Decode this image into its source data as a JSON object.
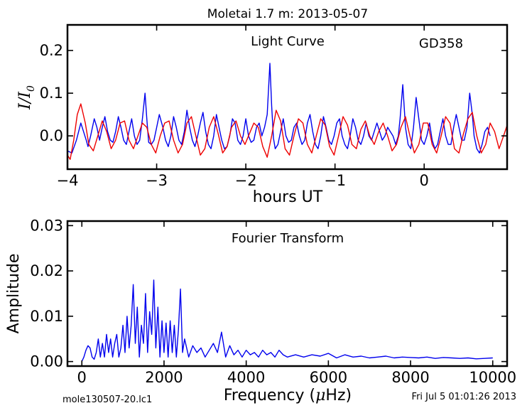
{
  "figure": {
    "title": "Moletai 1.7 m:  2013-05-07",
    "footer_left": "mole130507-20.lc1",
    "footer_right": "Fri Jul  5 01:01:26 2013"
  },
  "colors": {
    "data": "#0000ee",
    "model": "#ee0000",
    "axes": "#000000"
  },
  "chart_data": [
    {
      "type": "line",
      "panel": "top",
      "title": "",
      "annotations": [
        "Light Curve",
        "GD358"
      ],
      "xlabel": "hours UT",
      "ylabel": "I/I_0",
      "ylabel_parts": {
        "main": "I",
        "slash": "/",
        "sub_main": "I",
        "sub": "0"
      },
      "xlim": [
        -4.0,
        0.93
      ],
      "ylim": [
        -0.078,
        0.26
      ],
      "xticks": [
        -4,
        -3,
        -2,
        -1,
        0
      ],
      "xtick_labels": [
        "−4",
        "−3",
        "−2",
        "−1",
        "0"
      ],
      "yticks": [
        0.0,
        0.1,
        0.2
      ],
      "ytick_labels": [
        "0.0",
        "0.1",
        "0.2"
      ],
      "grid": false,
      "legend": "none",
      "series": [
        {
          "role": "observed",
          "color": "#0000ee",
          "x": [
            -4.0,
            -3.95,
            -3.9,
            -3.85,
            -3.82,
            -3.79,
            -3.77,
            -3.74,
            -3.7,
            -3.67,
            -3.64,
            -3.61,
            -3.58,
            -3.55,
            -3.52,
            -3.49,
            -3.46,
            -3.43,
            -3.4,
            -3.37,
            -3.34,
            -3.31,
            -3.28,
            -3.25,
            -3.22,
            -3.19,
            -3.16,
            -3.13,
            -3.11,
            -3.09,
            -3.06,
            -3.03,
            -3.0,
            -2.97,
            -2.93,
            -2.9,
            -2.87,
            -2.84,
            -2.81,
            -2.78,
            -2.75,
            -2.72,
            -2.69,
            -2.66,
            -2.63,
            -2.6,
            -2.57,
            -2.54,
            -2.51,
            -2.48,
            -2.45,
            -2.42,
            -2.39,
            -2.36,
            -2.33,
            -2.3,
            -2.27,
            -2.24,
            -2.21,
            -2.18,
            -2.15,
            -2.12,
            -2.09,
            -2.06,
            -2.03,
            -2.0,
            -1.97,
            -1.94,
            -1.91,
            -1.88,
            -1.85,
            -1.82,
            -1.79,
            -1.76,
            -1.73,
            -1.71,
            -1.69,
            -1.67,
            -1.64,
            -1.61,
            -1.58,
            -1.55,
            -1.52,
            -1.49,
            -1.46,
            -1.43,
            -1.4,
            -1.37,
            -1.34,
            -1.31,
            -1.28,
            -1.25,
            -1.22,
            -1.19,
            -1.16,
            -1.13,
            -1.1,
            -1.07,
            -1.04,
            -1.01,
            -0.98,
            -0.95,
            -0.92,
            -0.89,
            -0.86,
            -0.83,
            -0.8,
            -0.77,
            -0.74,
            -0.71,
            -0.68,
            -0.65,
            -0.62,
            -0.59,
            -0.56,
            -0.53,
            -0.5,
            -0.47,
            -0.44,
            -0.41,
            -0.38,
            -0.35,
            -0.32,
            -0.29,
            -0.27,
            -0.24,
            -0.21,
            -0.18,
            -0.15,
            -0.12,
            -0.09,
            -0.06,
            -0.03,
            0.0,
            0.03,
            0.06,
            0.09,
            0.12,
            0.15,
            0.18,
            0.21,
            0.24,
            0.27,
            0.3,
            0.33,
            0.36,
            0.39,
            0.42,
            0.45,
            0.48,
            0.51,
            0.54,
            0.56,
            0.59,
            0.62,
            0.65,
            0.68,
            0.71,
            0.74
          ],
          "y": [
            -0.035,
            -0.04,
            -0.01,
            0.03,
            0.01,
            -0.01,
            -0.025,
            0.0,
            0.04,
            0.02,
            -0.01,
            0.02,
            0.045,
            0.01,
            -0.01,
            -0.015,
            0.01,
            0.045,
            0.02,
            -0.01,
            -0.02,
            0.01,
            0.04,
            0.0,
            -0.02,
            -0.01,
            0.04,
            0.1,
            0.04,
            -0.015,
            -0.02,
            -0.01,
            0.02,
            0.05,
            0.02,
            -0.01,
            -0.025,
            0.0,
            0.045,
            0.02,
            -0.01,
            -0.02,
            0.01,
            0.06,
            0.02,
            -0.01,
            -0.025,
            0.0,
            0.03,
            0.055,
            0.01,
            -0.02,
            -0.03,
            0.0,
            0.05,
            0.02,
            -0.01,
            -0.03,
            -0.025,
            0.0,
            0.04,
            0.03,
            -0.01,
            -0.02,
            0.0,
            0.04,
            0.0,
            -0.015,
            -0.01,
            0.02,
            0.03,
            0.0,
            0.02,
            0.05,
            0.17,
            0.07,
            -0.005,
            -0.03,
            -0.02,
            0.01,
            0.04,
            0.0,
            -0.015,
            -0.01,
            0.02,
            0.03,
            0.0,
            -0.02,
            -0.01,
            0.03,
            0.05,
            0.01,
            -0.02,
            -0.03,
            0.0,
            0.045,
            0.02,
            -0.01,
            -0.02,
            0.0,
            0.03,
            0.04,
            0.0,
            -0.02,
            -0.03,
            0.0,
            0.04,
            0.02,
            -0.01,
            -0.02,
            0.0,
            0.03,
            0.0,
            -0.01,
            0.01,
            0.03,
            0.01,
            -0.01,
            0.0,
            0.02,
            0.01,
            0.0,
            -0.02,
            0.0,
            0.04,
            0.12,
            0.02,
            -0.02,
            -0.03,
            0.02,
            0.09,
            0.04,
            -0.01,
            -0.02,
            0.0,
            0.03,
            -0.01,
            -0.03,
            -0.02,
            0.01,
            0.04,
            0.0,
            -0.02,
            -0.02,
            0.02,
            0.05,
            0.02,
            -0.01,
            -0.01,
            0.02,
            0.1,
            0.05,
            0.0,
            -0.03,
            -0.04,
            -0.02,
            0.01,
            0.02,
            0.0
          ]
        },
        {
          "role": "fit",
          "color": "#ee0000",
          "x": [
            -4.0,
            -3.97,
            -3.93,
            -3.89,
            -3.85,
            -3.8,
            -3.76,
            -3.71,
            -3.66,
            -3.61,
            -3.56,
            -3.51,
            -3.46,
            -3.41,
            -3.36,
            -3.31,
            -3.26,
            -3.21,
            -3.16,
            -3.11,
            -3.06,
            -3.01,
            -2.96,
            -2.91,
            -2.86,
            -2.81,
            -2.76,
            -2.71,
            -2.66,
            -2.61,
            -2.56,
            -2.51,
            -2.46,
            -2.41,
            -2.36,
            -2.31,
            -2.26,
            -2.21,
            -2.16,
            -2.11,
            -2.06,
            -2.01,
            -1.96,
            -1.91,
            -1.86,
            -1.81,
            -1.76,
            -1.71,
            -1.66,
            -1.61,
            -1.56,
            -1.51,
            -1.46,
            -1.41,
            -1.36,
            -1.31,
            -1.26,
            -1.21,
            -1.16,
            -1.11,
            -1.06,
            -1.01,
            -0.96,
            -0.91,
            -0.86,
            -0.81,
            -0.76,
            -0.71,
            -0.66,
            -0.61,
            -0.56,
            -0.51,
            -0.46,
            -0.41,
            -0.36,
            -0.31,
            -0.26,
            -0.21,
            -0.16,
            -0.11,
            -0.06,
            -0.01,
            0.04,
            0.09,
            0.14,
            0.19,
            0.24,
            0.29,
            0.34,
            0.39,
            0.44,
            0.49,
            0.54,
            0.59,
            0.64,
            0.69,
            0.74,
            0.79,
            0.84,
            0.89,
            0.93
          ],
          "y": [
            -0.045,
            -0.055,
            -0.01,
            0.05,
            0.075,
            0.03,
            -0.02,
            -0.035,
            0.0,
            0.035,
            0.01,
            -0.03,
            -0.01,
            0.03,
            0.035,
            -0.01,
            -0.03,
            0.0,
            0.03,
            0.02,
            -0.02,
            -0.04,
            0.0,
            0.03,
            0.035,
            -0.01,
            -0.04,
            -0.02,
            0.03,
            0.045,
            0.0,
            -0.045,
            -0.03,
            0.02,
            0.045,
            0.005,
            -0.04,
            -0.025,
            0.02,
            0.035,
            0.0,
            -0.02,
            0.005,
            0.03,
            0.02,
            -0.025,
            -0.05,
            0.0,
            0.06,
            0.035,
            -0.03,
            -0.045,
            0.0,
            0.04,
            0.03,
            -0.02,
            -0.04,
            0.0,
            0.04,
            0.025,
            -0.025,
            -0.045,
            0.0,
            0.045,
            0.025,
            -0.02,
            -0.03,
            0.015,
            0.035,
            0.0,
            -0.02,
            0.01,
            0.03,
            0.0,
            -0.035,
            -0.02,
            0.02,
            0.045,
            0.0,
            -0.04,
            -0.02,
            0.03,
            0.03,
            -0.02,
            -0.04,
            0.0,
            0.045,
            0.03,
            -0.03,
            -0.04,
            0.005,
            0.04,
            0.055,
            0.0,
            -0.04,
            -0.02,
            0.03,
            0.01,
            -0.03,
            0.0,
            0.025
          ]
        }
      ]
    },
    {
      "type": "line",
      "panel": "bottom",
      "title": "",
      "annotations": [
        "Fourier Transform"
      ],
      "xlabel": "Frequency (μHz)",
      "xlabel_parts": {
        "pre": "Frequency (",
        "mu": "μ",
        "post": "Hz)"
      },
      "ylabel": "Amplitude",
      "xlim": [
        -350,
        10350
      ],
      "ylim": [
        -0.001,
        0.031
      ],
      "xticks": [
        0,
        2000,
        4000,
        6000,
        8000,
        10000
      ],
      "xtick_labels": [
        "0",
        "2000",
        "4000",
        "6000",
        "8000",
        "10000"
      ],
      "yticks": [
        0.0,
        0.01,
        0.02,
        0.03
      ],
      "ytick_labels": [
        "0.00",
        "0.01",
        "0.02",
        "0.03"
      ],
      "grid": false,
      "legend": "none",
      "series": [
        {
          "role": "amplitude",
          "color": "#0000ee",
          "x": [
            0,
            50,
            100,
            150,
            200,
            250,
            300,
            350,
            400,
            450,
            500,
            550,
            600,
            650,
            700,
            750,
            800,
            850,
            900,
            950,
            1000,
            1050,
            1100,
            1150,
            1200,
            1250,
            1300,
            1350,
            1400,
            1450,
            1500,
            1550,
            1600,
            1650,
            1700,
            1750,
            1800,
            1850,
            1900,
            1950,
            2000,
            2050,
            2100,
            2150,
            2200,
            2250,
            2300,
            2350,
            2400,
            2450,
            2500,
            2550,
            2600,
            2700,
            2800,
            2900,
            3000,
            3100,
            3200,
            3300,
            3400,
            3500,
            3600,
            3700,
            3800,
            3900,
            4000,
            4100,
            4200,
            4300,
            4400,
            4500,
            4600,
            4700,
            4800,
            4900,
            5000,
            5200,
            5400,
            5600,
            5800,
            6000,
            6200,
            6400,
            6600,
            6800,
            7000,
            7200,
            7400,
            7600,
            7800,
            8000,
            8200,
            8400,
            8600,
            8800,
            9000,
            9200,
            9400,
            9600,
            9800,
            10000
          ],
          "y": [
            0.0,
            0.001,
            0.0025,
            0.0035,
            0.003,
            0.001,
            0.0005,
            0.002,
            0.005,
            0.001,
            0.004,
            0.001,
            0.006,
            0.002,
            0.005,
            0.001,
            0.004,
            0.006,
            0.001,
            0.003,
            0.008,
            0.002,
            0.01,
            0.003,
            0.008,
            0.017,
            0.004,
            0.012,
            0.001,
            0.008,
            0.004,
            0.015,
            0.002,
            0.011,
            0.006,
            0.018,
            0.003,
            0.012,
            0.001,
            0.009,
            0.002,
            0.0085,
            0.001,
            0.009,
            0.002,
            0.008,
            0.001,
            0.007,
            0.016,
            0.002,
            0.005,
            0.003,
            0.001,
            0.0035,
            0.002,
            0.003,
            0.001,
            0.0025,
            0.004,
            0.002,
            0.0065,
            0.001,
            0.0035,
            0.0015,
            0.0025,
            0.001,
            0.0025,
            0.0015,
            0.002,
            0.001,
            0.0025,
            0.0015,
            0.002,
            0.001,
            0.0025,
            0.0015,
            0.001,
            0.0015,
            0.001,
            0.0015,
            0.0012,
            0.0018,
            0.0008,
            0.0015,
            0.001,
            0.0012,
            0.0008,
            0.001,
            0.0012,
            0.0008,
            0.001,
            0.0009,
            0.0008,
            0.001,
            0.0007,
            0.0009,
            0.0008,
            0.0007,
            0.0008,
            0.0006,
            0.0007,
            0.0008
          ]
        }
      ]
    }
  ]
}
